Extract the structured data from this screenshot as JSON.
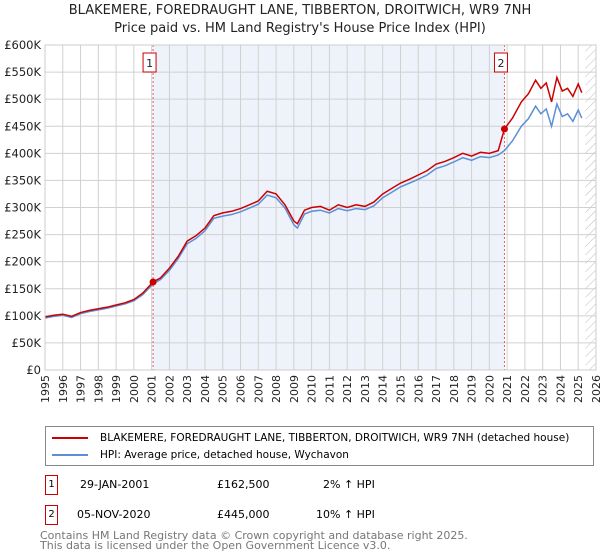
{
  "chart_data": {
    "type": "line",
    "title": "BLAKEMERE, FOREDRAUGHT LANE, TIBBERTON, DROITWICH, WR9 7NH",
    "subtitle": "Price paid vs. HM Land Registry's House Price Index (HPI)",
    "xlim": [
      1995,
      2026
    ],
    "ylim": [
      0,
      600000
    ],
    "yticks": [
      0,
      50000,
      100000,
      150000,
      200000,
      250000,
      300000,
      350000,
      400000,
      450000,
      500000,
      550000,
      600000
    ],
    "ytick_labels": [
      "£0",
      "£50K",
      "£100K",
      "£150K",
      "£200K",
      "£250K",
      "£300K",
      "£350K",
      "£400K",
      "£450K",
      "£500K",
      "£550K",
      "£600K"
    ],
    "xticks": [
      "1995",
      "1996",
      "1997",
      "1998",
      "1999",
      "2000",
      "2001",
      "2002",
      "2003",
      "2004",
      "2005",
      "2006",
      "2007",
      "2008",
      "2009",
      "2010",
      "2011",
      "2012",
      "2013",
      "2014",
      "2015",
      "2016",
      "2017",
      "2018",
      "2019",
      "2020",
      "2021",
      "2022",
      "2023",
      "2024",
      "2025",
      "2026"
    ],
    "shaded_range": [
      2001.08,
      2020.85
    ],
    "hatched_from": 2025.4,
    "series": [
      {
        "name": "BLAKEMERE, FOREDRAUGHT LANE, TIBBERTON, DROITWICH, WR9 7NH (detached house)",
        "color": "#cc0000",
        "x": [
          1995,
          1995.5,
          1996,
          1996.5,
          1997,
          1997.5,
          1998,
          1998.5,
          1999,
          1999.5,
          2000,
          2000.5,
          2001.08,
          2001.5,
          2002,
          2002.5,
          2003,
          2003.5,
          2004,
          2004.5,
          2005,
          2005.5,
          2006,
          2006.5,
          2007,
          2007.5,
          2008,
          2008.5,
          2009,
          2009.2,
          2009.6,
          2010,
          2010.5,
          2011,
          2011.5,
          2012,
          2012.5,
          2013,
          2013.5,
          2014,
          2014.5,
          2015,
          2015.5,
          2016,
          2016.5,
          2017,
          2017.5,
          2018,
          2018.5,
          2019,
          2019.5,
          2020,
          2020.5,
          2020.85,
          2021.3,
          2021.8,
          2022.2,
          2022.6,
          2022.9,
          2023.2,
          2023.5,
          2023.8,
          2024.1,
          2024.4,
          2024.7,
          2025,
          2025.2
        ],
        "y": [
          98000,
          101000,
          103000,
          99000,
          106000,
          110000,
          113000,
          116000,
          120000,
          124000,
          130000,
          142000,
          162500,
          170000,
          188000,
          210000,
          238000,
          248000,
          262000,
          285000,
          290000,
          293000,
          298000,
          305000,
          312000,
          330000,
          325000,
          305000,
          275000,
          270000,
          295000,
          300000,
          302000,
          295000,
          305000,
          300000,
          305000,
          302000,
          310000,
          325000,
          335000,
          345000,
          352000,
          360000,
          368000,
          380000,
          385000,
          392000,
          400000,
          395000,
          402000,
          400000,
          405000,
          445000,
          465000,
          495000,
          510000,
          535000,
          520000,
          530000,
          495000,
          540000,
          515000,
          520000,
          505000,
          528000,
          512000
        ]
      },
      {
        "name": "HPI: Average price, detached house, Wychavon",
        "color": "#5b8fd6",
        "x": [
          1995,
          1995.5,
          1996,
          1996.5,
          1997,
          1997.5,
          1998,
          1998.5,
          1999,
          1999.5,
          2000,
          2000.5,
          2001.08,
          2001.5,
          2002,
          2002.5,
          2003,
          2003.5,
          2004,
          2004.5,
          2005,
          2005.5,
          2006,
          2006.5,
          2007,
          2007.5,
          2008,
          2008.5,
          2009,
          2009.2,
          2009.6,
          2010,
          2010.5,
          2011,
          2011.5,
          2012,
          2012.5,
          2013,
          2013.5,
          2014,
          2014.5,
          2015,
          2015.5,
          2016,
          2016.5,
          2017,
          2017.5,
          2018,
          2018.5,
          2019,
          2019.5,
          2020,
          2020.5,
          2020.85,
          2021.3,
          2021.8,
          2022.2,
          2022.6,
          2022.9,
          2023.2,
          2023.5,
          2023.8,
          2024.1,
          2024.4,
          2024.7,
          2025,
          2025.2
        ],
        "y": [
          96000,
          99000,
          101000,
          97000,
          104000,
          108000,
          111000,
          114000,
          118000,
          122000,
          128000,
          139000,
          159000,
          167000,
          184000,
          206000,
          233000,
          243000,
          257000,
          280000,
          284000,
          287000,
          292000,
          299000,
          306000,
          323000,
          318000,
          299000,
          268000,
          262000,
          288000,
          293000,
          295000,
          290000,
          298000,
          294000,
          298000,
          296000,
          303000,
          318000,
          328000,
          338000,
          345000,
          352000,
          360000,
          372000,
          377000,
          384000,
          392000,
          387000,
          394000,
          392000,
          397000,
          405000,
          423000,
          450000,
          464000,
          487000,
          473000,
          482000,
          450000,
          491000,
          468000,
          473000,
          459000,
          480000,
          465000
        ]
      }
    ],
    "markers": [
      {
        "label": "1",
        "x": 2001.08,
        "y": 162500
      },
      {
        "label": "2",
        "x": 2020.85,
        "y": 445000
      }
    ]
  },
  "transactions": [
    {
      "num": "1",
      "date": "29-JAN-2001",
      "price": "£162,500",
      "hpi": "2% ↑ HPI"
    },
    {
      "num": "2",
      "date": "05-NOV-2020",
      "price": "£445,000",
      "hpi": "10% ↑ HPI"
    }
  ],
  "footer": [
    "Contains HM Land Registry data © Crown copyright and database right 2025.",
    "This data is licensed under the Open Government Licence v3.0."
  ]
}
